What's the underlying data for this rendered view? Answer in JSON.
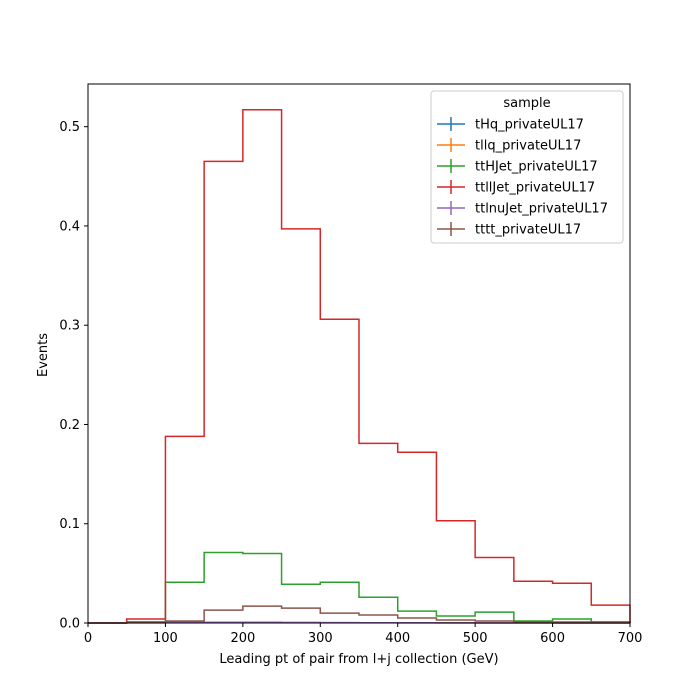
{
  "chart_data": {
    "type": "step",
    "xlabel": "Leading pt of pair from l+j collection (GeV)",
    "ylabel": "Events",
    "xlim": [
      0,
      700
    ],
    "ylim": [
      0,
      0.543
    ],
    "x_ticks": [
      "0",
      "100",
      "200",
      "300",
      "400",
      "500",
      "600",
      "700"
    ],
    "y_ticks": [
      "0.0",
      "0.1",
      "0.2",
      "0.3",
      "0.4",
      "0.5"
    ],
    "grid": false,
    "bin_edges": [
      0,
      50,
      100,
      150,
      200,
      250,
      300,
      350,
      400,
      450,
      500,
      550,
      600,
      650,
      700
    ],
    "legend": {
      "title": "sample",
      "placement": "top-right"
    },
    "series": [
      {
        "name": "tHq_privateUL17",
        "color": "#1f77b4",
        "values": [
          0,
          0.0003,
          0.0008,
          0.0008,
          0.0007,
          0.0005,
          0.0004,
          0.0003,
          0.0002,
          0.0002,
          0.0001,
          0.0001,
          0.0001,
          0.0001
        ]
      },
      {
        "name": "tllq_privateUL17",
        "color": "#ff7f0e",
        "values": [
          0,
          0.0001,
          0.0003,
          0.0004,
          0.0004,
          0.0003,
          0.0002,
          0.0002,
          0.0001,
          0.0001,
          0.0001,
          0.0001,
          0,
          0
        ]
      },
      {
        "name": "ttHJet_privateUL17",
        "color": "#2ca02c",
        "values": [
          0,
          0.001,
          0.041,
          0.071,
          0.07,
          0.039,
          0.041,
          0.026,
          0.012,
          0.007,
          0.011,
          0.002,
          0.004,
          0.001
        ]
      },
      {
        "name": "ttllJet_privateUL17",
        "color": "#d62728",
        "values": [
          0,
          0.004,
          0.188,
          0.465,
          0.517,
          0.397,
          0.306,
          0.181,
          0.172,
          0.103,
          0.066,
          0.042,
          0.04,
          0.018
        ]
      },
      {
        "name": "ttlnuJet_privateUL17",
        "color": "#9467bd",
        "values": [
          0,
          0.0002,
          0.0005,
          0.0006,
          0.0005,
          0.0004,
          0.0003,
          0.0002,
          0.0002,
          0.0001,
          0.0001,
          0.0001,
          0,
          0
        ]
      },
      {
        "name": "tttt_privateUL17",
        "color": "#8c564b",
        "values": [
          0,
          0.001,
          0.002,
          0.013,
          0.017,
          0.015,
          0.01,
          0.008,
          0.005,
          0.003,
          0.002,
          0.001,
          0.001,
          0.001
        ]
      }
    ]
  }
}
